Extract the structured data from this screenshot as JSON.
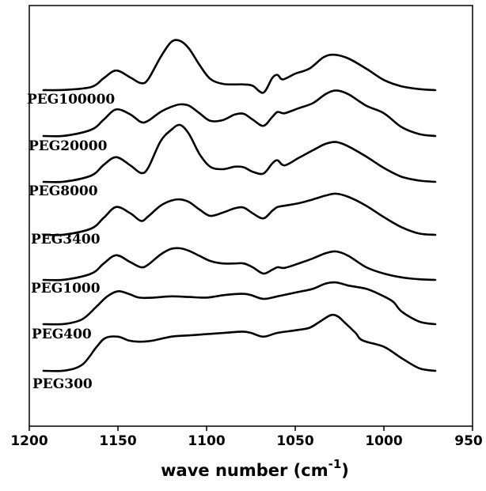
{
  "chart_data": {
    "type": "line",
    "title": "",
    "xlabel": {
      "main": "wave number (cm",
      "sup": "-1",
      "close": ")"
    },
    "ylabel": "",
    "xlim": [
      1200,
      950
    ],
    "x_axis_reversed": true,
    "x_ticks": [
      1200,
      1150,
      1100,
      1050,
      1000,
      950
    ],
    "y_ticks_shown": false,
    "grid": false,
    "legend": "none",
    "stacked_offsets": true,
    "series": [
      {
        "name": "PEG100000",
        "x": [
          1192,
          1180,
          1165,
          1158,
          1151,
          1143,
          1137,
          1133,
          1126,
          1120,
          1115,
          1110,
          1104,
          1098,
          1091,
          1084,
          1079,
          1074,
          1068,
          1063,
          1060,
          1057,
          1050,
          1042,
          1034,
          1028,
          1020,
          1010,
          1000,
          990,
          980,
          971
        ],
        "values": [
          0,
          0.2,
          2.5,
          9.5,
          15.5,
          10,
          5.5,
          8.5,
          26,
          38,
          39,
          33,
          20,
          9,
          5,
          4.5,
          4.5,
          3.5,
          -2,
          9.5,
          12,
          8.5,
          13,
          17,
          26,
          28,
          25,
          17,
          8,
          3,
          0.8,
          0
        ]
      },
      {
        "name": "PEG20000",
        "x": [
          1192,
          1180,
          1165,
          1158,
          1151,
          1143,
          1137,
          1133,
          1126,
          1120,
          1115,
          1110,
          1104,
          1098,
          1091,
          1084,
          1079,
          1074,
          1068,
          1063,
          1060,
          1056,
          1048,
          1040,
          1033,
          1027,
          1020,
          1010,
          1000,
          990,
          980,
          971
        ],
        "values": [
          0,
          0.2,
          5,
          13,
          21,
          17,
          11,
          12,
          19,
          23,
          25,
          24,
          18,
          12,
          12.5,
          17,
          17.5,
          13,
          8,
          15,
          19,
          18,
          22,
          26,
          33,
          36,
          33,
          24,
          18,
          7,
          1.5,
          0
        ]
      },
      {
        "name": "PEG8000",
        "x": [
          1192,
          1180,
          1165,
          1158,
          1151,
          1143,
          1137,
          1133,
          1126,
          1120,
          1115,
          1110,
          1104,
          1098,
          1091,
          1084,
          1079,
          1074,
          1068,
          1063,
          1060,
          1056,
          1048,
          1040,
          1033,
          1027,
          1020,
          1010,
          1000,
          990,
          980,
          971
        ],
        "values": [
          0,
          0.2,
          5,
          13.5,
          19.5,
          13,
          7,
          11,
          32,
          41,
          45,
          38,
          22,
          12,
          10,
          12,
          11.5,
          8,
          6.5,
          14.5,
          17,
          13,
          19,
          25,
          30,
          31.5,
          28,
          20,
          11,
          4,
          1,
          0
        ]
      },
      {
        "name": "PEG3400",
        "x": [
          1192,
          1180,
          1165,
          1158,
          1151,
          1143,
          1137,
          1133,
          1126,
          1120,
          1115,
          1110,
          1104,
          1098,
          1091,
          1084,
          1079,
          1074,
          1068,
          1063,
          1060,
          1056,
          1048,
          1040,
          1033,
          1027,
          1020,
          1010,
          1000,
          990,
          980,
          971
        ],
        "values": [
          0,
          0.2,
          5,
          13.5,
          22,
          17,
          11,
          14.5,
          23,
          27,
          28,
          26,
          20,
          15,
          17.5,
          21,
          21.5,
          17,
          13,
          19,
          22,
          23,
          25,
          28,
          31,
          32.5,
          30,
          23,
          14,
          6,
          1,
          0
        ]
      },
      {
        "name": "PEG1000",
        "x": [
          1192,
          1180,
          1165,
          1158,
          1151,
          1143,
          1137,
          1133,
          1126,
          1120,
          1115,
          1110,
          1104,
          1098,
          1091,
          1084,
          1079,
          1074,
          1068,
          1063,
          1060,
          1056,
          1048,
          1040,
          1033,
          1027,
          1020,
          1010,
          1000,
          990,
          980,
          971
        ],
        "values": [
          0,
          0.2,
          5,
          13,
          19.5,
          14,
          10,
          12,
          20,
          24.5,
          25,
          23,
          19,
          15,
          13,
          13,
          13,
          10,
          5,
          8,
          10,
          9.5,
          13,
          17,
          21,
          22.5,
          19,
          10,
          5,
          2,
          0.5,
          0
        ]
      },
      {
        "name": "PEG400",
        "x": [
          1192,
          1180,
          1170,
          1162,
          1156,
          1150,
          1144,
          1138,
          1130,
          1120,
          1110,
          1100,
          1090,
          1080,
          1075,
          1068,
          1060,
          1050,
          1040,
          1033,
          1027,
          1020,
          1010,
          1003,
          995,
          990,
          980,
          971
        ],
        "values": [
          0,
          0.2,
          4,
          14,
          22,
          26,
          24,
          21,
          21,
          22,
          21.5,
          21,
          23,
          24,
          23,
          20,
          22,
          25,
          28,
          32,
          33,
          30.5,
          28,
          24,
          18,
          10,
          2,
          0
        ]
      },
      {
        "name": "PEG300",
        "x": [
          1192,
          1180,
          1170,
          1162,
          1157,
          1150,
          1144,
          1138,
          1130,
          1120,
          1110,
          1100,
          1090,
          1080,
          1075,
          1068,
          1060,
          1050,
          1042,
          1036,
          1030,
          1026,
          1022,
          1016,
          1012,
          1000,
          990,
          980,
          971
        ],
        "values": [
          0,
          0.2,
          5,
          19,
          26,
          27,
          24,
          23,
          24,
          27,
          28,
          29,
          30,
          31,
          30,
          27,
          30,
          32,
          34,
          39,
          44,
          43,
          38,
          30,
          24,
          19,
          10,
          2,
          0
        ]
      }
    ]
  }
}
